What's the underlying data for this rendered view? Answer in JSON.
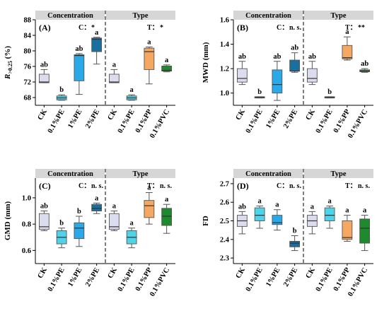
{
  "chart_data": [
    {
      "type": "box",
      "panel_label": "(A)",
      "ylabel": "R >0.25 (%)",
      "ylabel_main": "R",
      "ylabel_sub": ">0.25",
      "ylabel_unit": " (%)",
      "ylim": [
        66,
        88
      ],
      "yticks": [
        "68",
        "72",
        "76",
        "80",
        "84",
        "88"
      ],
      "ytick_values": [
        68,
        72,
        76,
        80,
        84,
        88
      ],
      "group_titles": [
        "Concentration",
        "Type"
      ],
      "sig_left": {
        "label": "C：",
        "value": "*"
      },
      "sig_right": {
        "label": "T：",
        "value": "*"
      },
      "categories": [
        "CK",
        "0.1%PE",
        "1%PE",
        "2%PE",
        "CK",
        "0.1%PE",
        "0.1%PP",
        "0.1%PVC"
      ],
      "colors": [
        "#dcdcef",
        "#4fd3e8",
        "#2aa9e8",
        "#1a6fa0",
        "#dcdcef",
        "#4fd3e8",
        "#f6a862",
        "#1e8a2e"
      ],
      "boxes": [
        {
          "min": 71.8,
          "q1": 71.8,
          "median": 72.0,
          "q3": 74.0,
          "max": 75.2
        },
        {
          "min": 67.3,
          "q1": 67.4,
          "median": 67.9,
          "q3": 68.4,
          "max": 68.7
        },
        {
          "min": 68.8,
          "q1": 72.3,
          "median": 78.8,
          "q3": 79.0,
          "max": 79.3
        },
        {
          "min": 76.6,
          "q1": 79.8,
          "median": 83.0,
          "q3": 83.3,
          "max": 83.5
        },
        {
          "min": 71.8,
          "q1": 71.8,
          "median": 72.0,
          "q3": 74.0,
          "max": 75.2
        },
        {
          "min": 67.3,
          "q1": 67.4,
          "median": 67.9,
          "q3": 68.4,
          "max": 68.7
        },
        {
          "min": 71.5,
          "q1": 75.2,
          "median": 79.8,
          "q3": 80.7,
          "max": 81.0
        },
        {
          "min": 74.6,
          "q1": 74.8,
          "median": 75.0,
          "q3": 76.1,
          "max": 76.4
        }
      ],
      "letters": [
        "ab",
        "b",
        "ab",
        "a",
        "a",
        "a",
        "a",
        "a"
      ]
    },
    {
      "type": "box",
      "panel_label": "(B)",
      "ylabel": "MWD (mm)",
      "ylabel_main": "MWD (mm)",
      "ylabel_sub": "",
      "ylabel_unit": "",
      "ylim": [
        0.9,
        1.6
      ],
      "yticks": [
        "1.0",
        "1.2",
        "1.4",
        "1.6"
      ],
      "ytick_values": [
        1.0,
        1.2,
        1.4,
        1.6
      ],
      "group_titles": [
        "Concentration",
        "Type"
      ],
      "sig_left": {
        "label": "C：",
        "value": "n. s."
      },
      "sig_right": {
        "label": "T：",
        "value": "**"
      },
      "categories": [
        "CK",
        "0.1%PE",
        "1%PE",
        "2%PE",
        "CK",
        "0.1%PE",
        "0.1%PP",
        "0.1%PVC"
      ],
      "colors": [
        "#dcdcef",
        "#4fd3e8",
        "#2aa9e8",
        "#1a6fa0",
        "#dcdcef",
        "#4fd3e8",
        "#f6a862",
        "#1e8a2e"
      ],
      "boxes": [
        {
          "min": 1.07,
          "q1": 1.09,
          "median": 1.12,
          "q3": 1.2,
          "max": 1.26
        },
        {
          "min": 0.96,
          "q1": 0.96,
          "median": 0.965,
          "q3": 0.97,
          "max": 0.97
        },
        {
          "min": 0.94,
          "q1": 1.0,
          "median": 1.07,
          "q3": 1.19,
          "max": 1.26
        },
        {
          "min": 1.17,
          "q1": 1.18,
          "median": 1.18,
          "q3": 1.27,
          "max": 1.33
        },
        {
          "min": 1.07,
          "q1": 1.09,
          "median": 1.12,
          "q3": 1.2,
          "max": 1.26
        },
        {
          "min": 0.96,
          "q1": 0.96,
          "median": 0.965,
          "q3": 0.97,
          "max": 0.97
        },
        {
          "min": 1.27,
          "q1": 1.28,
          "median": 1.29,
          "q3": 1.39,
          "max": 1.46
        },
        {
          "min": 1.17,
          "q1": 1.175,
          "median": 1.18,
          "q3": 1.19,
          "max": 1.2
        }
      ],
      "letters": [
        "ab",
        "b",
        "ab",
        "ab",
        "ab",
        "b",
        "a",
        "ab"
      ]
    },
    {
      "type": "box",
      "panel_label": "(C)",
      "ylabel": "GMD (mm)",
      "ylabel_main": "GMD (mm)",
      "ylabel_sub": "",
      "ylabel_unit": "",
      "ylim": [
        0.5,
        1.15
      ],
      "yticks": [
        "0.6",
        "0.8",
        "1.0"
      ],
      "ytick_values": [
        0.6,
        0.8,
        1.0
      ],
      "group_titles": [
        "Concentration",
        "Type"
      ],
      "sig_left": {
        "label": "C：",
        "value": "n. s."
      },
      "sig_right": {
        "label": "T：",
        "value": "n. s."
      },
      "categories": [
        "CK",
        "0.1%PE",
        "1%PE",
        "2%PE",
        "CK",
        "0.1%PE",
        "0.1%PP",
        "0.1%PVC"
      ],
      "colors": [
        "#dcdcef",
        "#4fd3e8",
        "#2aa9e8",
        "#1a6fa0",
        "#dcdcef",
        "#4fd3e8",
        "#f6a862",
        "#1e8a2e"
      ],
      "boxes": [
        {
          "min": 0.75,
          "q1": 0.76,
          "median": 0.78,
          "q3": 0.88,
          "max": 0.9
        },
        {
          "min": 0.62,
          "q1": 0.65,
          "median": 0.7,
          "q3": 0.75,
          "max": 0.77
        },
        {
          "min": 0.63,
          "q1": 0.69,
          "median": 0.77,
          "q3": 0.81,
          "max": 0.86
        },
        {
          "min": 0.88,
          "q1": 0.9,
          "median": 0.92,
          "q3": 0.95,
          "max": 0.96
        },
        {
          "min": 0.75,
          "q1": 0.76,
          "median": 0.78,
          "q3": 0.88,
          "max": 0.9
        },
        {
          "min": 0.62,
          "q1": 0.65,
          "median": 0.7,
          "q3": 0.75,
          "max": 0.77
        },
        {
          "min": 0.8,
          "q1": 0.85,
          "median": 0.94,
          "q3": 0.98,
          "max": 1.04
        },
        {
          "min": 0.73,
          "q1": 0.79,
          "median": 0.86,
          "q3": 0.92,
          "max": 0.95
        }
      ],
      "letters": [
        "ab",
        "b",
        "b",
        "a",
        "a",
        "a",
        "a",
        "a"
      ]
    },
    {
      "type": "box",
      "panel_label": "(D)",
      "ylabel": "FD",
      "ylabel_main": "FD",
      "ylabel_sub": "",
      "ylabel_unit": "",
      "ylim": [
        2.27,
        2.73
      ],
      "yticks": [
        "2.3",
        "2.4",
        "2.5",
        "2.6",
        "2.7"
      ],
      "ytick_values": [
        2.3,
        2.4,
        2.5,
        2.6,
        2.7
      ],
      "group_titles": [
        "Concentration",
        "Type"
      ],
      "sig_left": {
        "label": "C：",
        "value": "n. s."
      },
      "sig_right": {
        "label": "T：",
        "value": "n. s."
      },
      "categories": [
        "CK",
        "0.1%PE",
        "1%PE",
        "2%PE",
        "CK",
        "0.1%PE",
        "0.1%PP",
        "0.1%PVC"
      ],
      "colors": [
        "#dcdcef",
        "#4fd3e8",
        "#2aa9e8",
        "#1a6fa0",
        "#dcdcef",
        "#4fd3e8",
        "#f6a862",
        "#1e8a2e"
      ],
      "boxes": [
        {
          "min": 2.43,
          "q1": 2.47,
          "median": 2.5,
          "q3": 2.53,
          "max": 2.55
        },
        {
          "min": 2.46,
          "q1": 2.5,
          "median": 2.53,
          "q3": 2.57,
          "max": 2.58
        },
        {
          "min": 2.45,
          "q1": 2.48,
          "median": 2.49,
          "q3": 2.53,
          "max": 2.56
        },
        {
          "min": 2.34,
          "q1": 2.36,
          "median": 2.38,
          "q3": 2.39,
          "max": 2.42
        },
        {
          "min": 2.43,
          "q1": 2.47,
          "median": 2.5,
          "q3": 2.53,
          "max": 2.55
        },
        {
          "min": 2.46,
          "q1": 2.5,
          "median": 2.53,
          "q3": 2.57,
          "max": 2.58
        },
        {
          "min": 2.39,
          "q1": 2.4,
          "median": 2.41,
          "q3": 2.5,
          "max": 2.53
        },
        {
          "min": 2.34,
          "q1": 2.38,
          "median": 2.46,
          "q3": 2.51,
          "max": 2.53
        }
      ],
      "letters": [
        "ab",
        "a",
        "a",
        "b",
        "a",
        "a",
        "a",
        "a"
      ]
    }
  ]
}
